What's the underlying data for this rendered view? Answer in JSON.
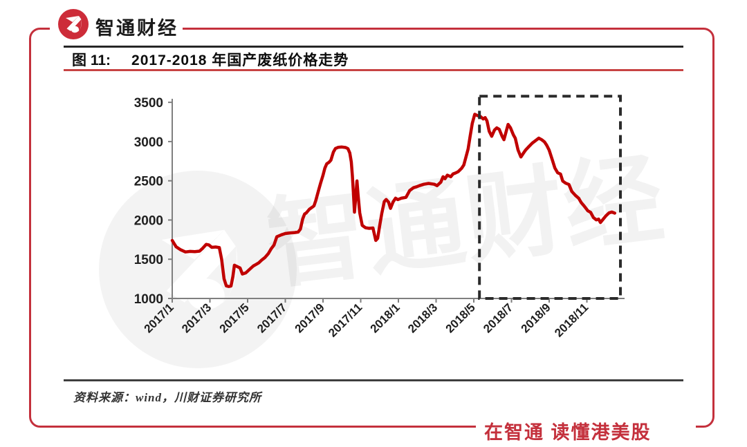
{
  "header": {
    "brand_name": "智通财经"
  },
  "figure": {
    "label": "图 11:",
    "title": "2017-2018 年国产废纸价格走势"
  },
  "watermark": {
    "text": "智通财经"
  },
  "footer": {
    "source": "资料来源：wind，川财证券研究所",
    "slogan": "在智通 读懂港美股"
  },
  "colors": {
    "brand_red": "#c4303c",
    "line_red": "#c00000",
    "title_rule_red": "#c74343",
    "axis_gray": "#7f7f7f",
    "label_dark": "#1f1f1f",
    "dash_box": "#2b2b2b"
  },
  "chart_data": {
    "type": "line",
    "title": "2017-2018 年国产废纸价格走势",
    "xlabel": "",
    "ylabel": "",
    "grid": false,
    "legend": "none",
    "ylim": [
      1000,
      3500
    ],
    "y_ticks": [
      1000,
      1500,
      2000,
      2500,
      3000,
      3500
    ],
    "x_tick_labels": [
      "2017/1",
      "2017/3",
      "2017/5",
      "2017/7",
      "2017/9",
      "2017/11",
      "2018/1",
      "2018/3",
      "2018/5",
      "2018/7",
      "2018/9",
      "2018/11"
    ],
    "x_tick_months": [
      0,
      2,
      4,
      6,
      8,
      10,
      12,
      14,
      16,
      18,
      20,
      22
    ],
    "x_unit": "months since 2017/1",
    "highlight_box": {
      "x0_month": 16.3,
      "x1_month": 23.78,
      "y0_value": 1000,
      "y1_value": 3578,
      "style": "dashed"
    },
    "series": [
      {
        "name": "国产废纸价格",
        "color": "#c00000",
        "points": [
          [
            0,
            1740
          ],
          [
            0.2,
            1660
          ],
          [
            0.45,
            1620
          ],
          [
            0.7,
            1593
          ],
          [
            0.95,
            1600
          ],
          [
            1.2,
            1597
          ],
          [
            1.45,
            1603
          ],
          [
            1.62,
            1640
          ],
          [
            1.8,
            1690
          ],
          [
            1.95,
            1682
          ],
          [
            2.1,
            1652
          ],
          [
            2.3,
            1656
          ],
          [
            2.5,
            1648
          ],
          [
            2.62,
            1500
          ],
          [
            2.75,
            1252
          ],
          [
            2.87,
            1160
          ],
          [
            3.0,
            1152
          ],
          [
            3.12,
            1158
          ],
          [
            3.22,
            1280
          ],
          [
            3.3,
            1424
          ],
          [
            3.45,
            1406
          ],
          [
            3.6,
            1388
          ],
          [
            3.72,
            1312
          ],
          [
            3.9,
            1326
          ],
          [
            4.1,
            1370
          ],
          [
            4.3,
            1414
          ],
          [
            4.45,
            1434
          ],
          [
            4.6,
            1455
          ],
          [
            4.75,
            1490
          ],
          [
            4.92,
            1522
          ],
          [
            5.1,
            1572
          ],
          [
            5.25,
            1634
          ],
          [
            5.4,
            1680
          ],
          [
            5.55,
            1786
          ],
          [
            5.8,
            1812
          ],
          [
            6.0,
            1828
          ],
          [
            6.25,
            1836
          ],
          [
            6.5,
            1840
          ],
          [
            6.68,
            1846
          ],
          [
            6.8,
            1884
          ],
          [
            6.92,
            2014
          ],
          [
            7.02,
            2075
          ],
          [
            7.12,
            2092
          ],
          [
            7.27,
            2136
          ],
          [
            7.42,
            2162
          ],
          [
            7.52,
            2180
          ],
          [
            7.62,
            2250
          ],
          [
            7.75,
            2366
          ],
          [
            7.87,
            2470
          ],
          [
            8.0,
            2570
          ],
          [
            8.1,
            2662
          ],
          [
            8.2,
            2716
          ],
          [
            8.32,
            2736
          ],
          [
            8.42,
            2762
          ],
          [
            8.55,
            2866
          ],
          [
            8.66,
            2912
          ],
          [
            8.8,
            2926
          ],
          [
            9.0,
            2930
          ],
          [
            9.2,
            2924
          ],
          [
            9.32,
            2910
          ],
          [
            9.42,
            2856
          ],
          [
            9.5,
            2740
          ],
          [
            9.56,
            2560
          ],
          [
            9.62,
            2320
          ],
          [
            9.67,
            2100
          ],
          [
            9.74,
            2300
          ],
          [
            9.8,
            2498
          ],
          [
            9.86,
            2320
          ],
          [
            9.95,
            2092
          ],
          [
            10.08,
            1932
          ],
          [
            10.25,
            1902
          ],
          [
            10.45,
            1894
          ],
          [
            10.65,
            1898
          ],
          [
            10.8,
            1740
          ],
          [
            10.9,
            1766
          ],
          [
            11.0,
            1920
          ],
          [
            11.12,
            2085
          ],
          [
            11.25,
            2236
          ],
          [
            11.35,
            2262
          ],
          [
            11.48,
            2228
          ],
          [
            11.58,
            2148
          ],
          [
            11.72,
            2232
          ],
          [
            11.85,
            2278
          ],
          [
            11.97,
            2260
          ],
          [
            12.15,
            2278
          ],
          [
            12.4,
            2288
          ],
          [
            12.6,
            2376
          ],
          [
            12.8,
            2412
          ],
          [
            12.97,
            2424
          ],
          [
            13.12,
            2438
          ],
          [
            13.35,
            2456
          ],
          [
            13.6,
            2466
          ],
          [
            13.9,
            2456
          ],
          [
            14.05,
            2438
          ],
          [
            14.25,
            2482
          ],
          [
            14.37,
            2552
          ],
          [
            14.47,
            2526
          ],
          [
            14.6,
            2572
          ],
          [
            14.78,
            2552
          ],
          [
            14.9,
            2588
          ],
          [
            15.02,
            2598
          ],
          [
            15.17,
            2616
          ],
          [
            15.35,
            2658
          ],
          [
            15.47,
            2702
          ],
          [
            15.57,
            2790
          ],
          [
            15.7,
            2906
          ],
          [
            15.8,
            3056
          ],
          [
            15.92,
            3232
          ],
          [
            16.05,
            3348
          ],
          [
            16.2,
            3330
          ],
          [
            16.35,
            3320
          ],
          [
            16.5,
            3288
          ],
          [
            16.6,
            3306
          ],
          [
            16.7,
            3262
          ],
          [
            16.82,
            3130
          ],
          [
            16.95,
            3068
          ],
          [
            17.1,
            3148
          ],
          [
            17.22,
            3174
          ],
          [
            17.35,
            3156
          ],
          [
            17.5,
            3068
          ],
          [
            17.6,
            3024
          ],
          [
            17.7,
            3112
          ],
          [
            17.82,
            3218
          ],
          [
            17.95,
            3174
          ],
          [
            18.1,
            3086
          ],
          [
            18.2,
            3042
          ],
          [
            18.35,
            2892
          ],
          [
            18.5,
            2804
          ],
          [
            18.62,
            2848
          ],
          [
            18.75,
            2892
          ],
          [
            18.92,
            2936
          ],
          [
            19.1,
            2980
          ],
          [
            19.3,
            3016
          ],
          [
            19.45,
            3044
          ],
          [
            19.6,
            3024
          ],
          [
            19.75,
            2996
          ],
          [
            19.87,
            2952
          ],
          [
            20.0,
            2890
          ],
          [
            20.15,
            2778
          ],
          [
            20.3,
            2664
          ],
          [
            20.45,
            2602
          ],
          [
            20.6,
            2586
          ],
          [
            20.72,
            2496
          ],
          [
            20.87,
            2470
          ],
          [
            21.05,
            2452
          ],
          [
            21.2,
            2364
          ],
          [
            21.4,
            2312
          ],
          [
            21.57,
            2276
          ],
          [
            21.7,
            2222
          ],
          [
            21.85,
            2180
          ],
          [
            22.05,
            2118
          ],
          [
            22.2,
            2098
          ],
          [
            22.35,
            2030
          ],
          [
            22.5,
            2002
          ],
          [
            22.62,
            2012
          ],
          [
            22.72,
            1968
          ],
          [
            22.87,
            2012
          ],
          [
            23.02,
            2056
          ],
          [
            23.17,
            2090
          ],
          [
            23.32,
            2102
          ],
          [
            23.48,
            2088
          ]
        ]
      }
    ]
  }
}
